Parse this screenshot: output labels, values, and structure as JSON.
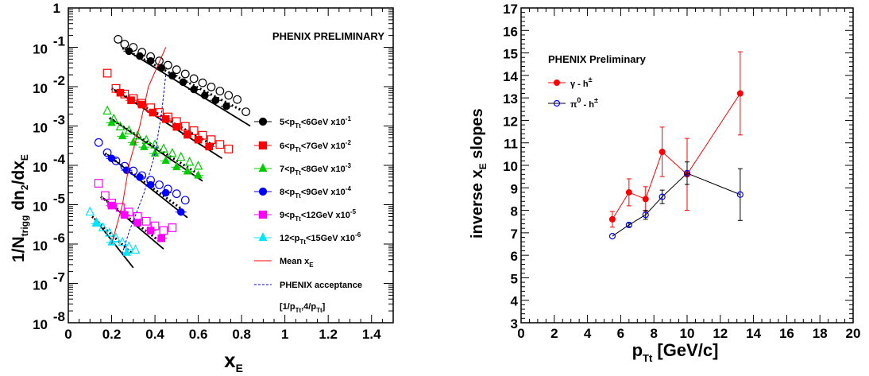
{
  "chart_data": [
    {
      "type": "scatter",
      "title": "",
      "annotation": "PHENIX PRELIMINARY",
      "annotation_color": "#ff0000",
      "xlabel": "x",
      "xlabel_sub": "E",
      "ylabel_parts": {
        "a": "1/N",
        "a_sub": "trigg",
        "b": " dn",
        "b_sub": "2",
        "c": "/dx",
        "c_sub": "E"
      },
      "xlim": [
        0,
        1.5
      ],
      "ylim_log10": [
        -8,
        0
      ],
      "yscale": "log",
      "x_ticks": [
        "0",
        "0.2",
        "0.4",
        "0.6",
        "0.8",
        "1",
        "1.2",
        "1.4"
      ],
      "x_tick_values": [
        0,
        0.2,
        0.4,
        0.6,
        0.8,
        1.0,
        1.2,
        1.4
      ],
      "y_ticks": [
        {
          "base": "1",
          "exp": ""
        },
        {
          "base": "10",
          "exp": "-1"
        },
        {
          "base": "10",
          "exp": "-2"
        },
        {
          "base": "10",
          "exp": "-3"
        },
        {
          "base": "10",
          "exp": "-4"
        },
        {
          "base": "10",
          "exp": "-5"
        },
        {
          "base": "10",
          "exp": "-6"
        },
        {
          "base": "10",
          "exp": "-7"
        },
        {
          "base": "10",
          "exp": "-8"
        }
      ],
      "series": [
        {
          "name": "5<p",
          "name_sub": "Tt",
          "name_tail": "<6GeV x10",
          "name_sup": "-1",
          "color": "#000000",
          "marker": "circle",
          "closed": [
            [
              0.28,
              0.08
            ],
            [
              0.33,
              0.06
            ],
            [
              0.38,
              0.045
            ],
            [
              0.43,
              0.03
            ],
            [
              0.48,
              0.019
            ],
            [
              0.53,
              0.013
            ],
            [
              0.58,
              0.0085
            ],
            [
              0.63,
              0.006
            ],
            [
              0.68,
              0.0045
            ],
            [
              0.73,
              0.0032
            ]
          ],
          "open": [
            [
              0.23,
              0.16
            ],
            [
              0.26,
              0.12
            ],
            [
              0.3,
              0.1
            ],
            [
              0.34,
              0.075
            ],
            [
              0.38,
              0.058
            ],
            [
              0.42,
              0.045
            ],
            [
              0.46,
              0.035
            ],
            [
              0.5,
              0.027
            ],
            [
              0.54,
              0.021
            ],
            [
              0.58,
              0.016
            ],
            [
              0.62,
              0.0125
            ],
            [
              0.66,
              0.0098
            ],
            [
              0.7,
              0.0077
            ],
            [
              0.74,
              0.006
            ],
            [
              0.78,
              0.0047
            ],
            [
              0.82,
              0.0023
            ]
          ],
          "fit": [
            [
              0.26,
              0.09
            ],
            [
              0.84,
              0.001
            ]
          ],
          "acceptance": [
            [
              0.25,
              0.095
            ],
            [
              0.8,
              0.0025
            ]
          ]
        },
        {
          "name": "6<p",
          "name_sub": "Tt",
          "name_tail": "<7GeV x10",
          "name_sup": "-2",
          "color": "#ff0000",
          "marker": "square",
          "closed": [
            [
              0.24,
              0.007
            ],
            [
              0.29,
              0.0045
            ],
            [
              0.34,
              0.0035
            ],
            [
              0.39,
              0.0022
            ],
            [
              0.45,
              0.0015
            ],
            [
              0.5,
              0.00095
            ],
            [
              0.55,
              0.0006
            ],
            [
              0.6,
              0.00045
            ],
            [
              0.65,
              0.0003
            ]
          ],
          "open": [
            [
              0.18,
              0.022
            ],
            [
              0.22,
              0.009
            ],
            [
              0.26,
              0.0065
            ],
            [
              0.3,
              0.005
            ],
            [
              0.34,
              0.0038
            ],
            [
              0.38,
              0.0029
            ],
            [
              0.42,
              0.0022
            ],
            [
              0.46,
              0.0017
            ],
            [
              0.5,
              0.0013
            ],
            [
              0.54,
              0.00098
            ],
            [
              0.58,
              0.00076
            ],
            [
              0.62,
              0.00058
            ],
            [
              0.66,
              0.00045
            ],
            [
              0.7,
              0.00034
            ],
            [
              0.74,
              0.00026
            ]
          ],
          "fit": [
            [
              0.21,
              0.0085
            ],
            [
              0.71,
              0.00015
            ]
          ],
          "acceptance": [
            [
              0.2,
              0.009
            ],
            [
              0.68,
              0.0003
            ]
          ]
        },
        {
          "name": "7<p",
          "name_sub": "Tt",
          "name_tail": "<8GeV x10",
          "name_sup": "-3",
          "color": "#00cc00",
          "marker": "triangle",
          "closed": [
            [
              0.2,
              0.0012
            ],
            [
              0.25,
              0.00055
            ],
            [
              0.3,
              0.00038
            ],
            [
              0.35,
              0.00029
            ],
            [
              0.4,
              0.0002
            ],
            [
              0.45,
              0.00013
            ],
            [
              0.5,
              9e-05
            ],
            [
              0.55,
              7e-05
            ],
            [
              0.6,
              5.5e-05
            ]
          ],
          "open": [
            [
              0.18,
              0.0024
            ],
            [
              0.21,
              0.0015
            ],
            [
              0.24,
              0.00095
            ],
            [
              0.28,
              0.00075
            ],
            [
              0.32,
              0.00056
            ],
            [
              0.36,
              0.00043
            ],
            [
              0.4,
              0.00033
            ],
            [
              0.44,
              0.00026
            ],
            [
              0.48,
              0.0002
            ],
            [
              0.52,
              0.00016
            ],
            [
              0.56,
              0.00012
            ],
            [
              0.6,
              9.5e-05
            ]
          ],
          "fit": [
            [
              0.2,
              0.0015
            ],
            [
              0.62,
              4e-05
            ]
          ],
          "acceptance": [
            [
              0.19,
              0.0016
            ],
            [
              0.6,
              6e-05
            ]
          ]
        },
        {
          "name": "8<p",
          "name_sub": "Tt",
          "name_tail": "<9GeV x10",
          "name_sup": "-4",
          "color": "#0000ff",
          "marker": "circle",
          "closed": [
            [
              0.2,
              0.00015
            ],
            [
              0.27,
              7.5e-05
            ],
            [
              0.33,
              5e-05
            ],
            [
              0.38,
              3.2e-05
            ],
            [
              0.45,
              2e-05
            ],
            [
              0.52,
              6.5e-06
            ]
          ],
          "open": [
            [
              0.14,
              0.00038
            ],
            [
              0.18,
              0.00021
            ],
            [
              0.22,
              0.00013
            ],
            [
              0.26,
              9.5e-05
            ],
            [
              0.3,
              7.2e-05
            ],
            [
              0.34,
              5.5e-05
            ],
            [
              0.38,
              4.2e-05
            ],
            [
              0.42,
              3.2e-05
            ],
            [
              0.46,
              2.5e-05
            ],
            [
              0.5,
              1.9e-05
            ],
            [
              0.54,
              1.3e-05
            ]
          ],
          "fit": [
            [
              0.18,
              0.00019
            ],
            [
              0.55,
              4.7e-06
            ]
          ],
          "acceptance": [
            [
              0.17,
              0.0002
            ],
            [
              0.52,
              8e-06
            ]
          ]
        },
        {
          "name": "9<p",
          "name_sub": "Tt",
          "name_tail": "<12GeV x10",
          "name_sup": "-5",
          "color": "#ff00ff",
          "marker": "square",
          "closed": [
            [
              0.2,
              9.5e-06
            ],
            [
              0.26,
              5.5e-06
            ],
            [
              0.32,
              3.5e-06
            ],
            [
              0.38,
              2.2e-06
            ],
            [
              0.43,
              1.4e-06
            ]
          ],
          "open": [
            [
              0.14,
              3.5e-05
            ],
            [
              0.17,
              1.7e-05
            ],
            [
              0.2,
              1.1e-05
            ],
            [
              0.24,
              8.5e-06
            ],
            [
              0.28,
              6.5e-06
            ],
            [
              0.32,
              5e-06
            ],
            [
              0.36,
              3.8e-06
            ],
            [
              0.4,
              2.9e-06
            ],
            [
              0.44,
              2.2e-06
            ],
            [
              0.48,
              2.6e-06
            ]
          ],
          "fit": [
            [
              0.16,
              1.5e-05
            ],
            [
              0.44,
              7.5e-07
            ]
          ],
          "acceptance": [
            [
              0.15,
              1.6e-05
            ],
            [
              0.42,
              1.2e-06
            ]
          ]
        },
        {
          "name": "12<p",
          "name_sub": "Tt",
          "name_tail": "<15GeV x10",
          "name_sup": "-6",
          "color": "#00e5ff",
          "marker": "triangle",
          "closed": [
            [
              0.13,
              3.3e-06
            ],
            [
              0.2,
              1.1e-06
            ],
            [
              0.27,
              6e-07
            ]
          ],
          "open": [
            [
              0.1,
              6.5e-06
            ],
            [
              0.13,
              3.5e-06
            ],
            [
              0.16,
              2.6e-06
            ],
            [
              0.19,
              1.9e-06
            ],
            [
              0.22,
              1.4e-06
            ],
            [
              0.25,
              1.1e-06
            ],
            [
              0.28,
              8.5e-07
            ],
            [
              0.31,
              7e-07
            ]
          ],
          "fit": [
            [
              0.12,
              4.5e-06
            ],
            [
              0.3,
              2.5e-07
            ]
          ],
          "acceptance": [
            [
              0.11,
              5e-06
            ],
            [
              0.29,
              6e-07
            ]
          ]
        }
      ],
      "mean_line": {
        "name": "Mean x",
        "name_sub": "E",
        "color": "#ff0000",
        "points": [
          [
            0.45,
            0.1
          ],
          [
            0.37,
            0.01
          ],
          [
            0.33,
            0.001
          ],
          [
            0.28,
            0.0001
          ],
          [
            0.25,
            1e-05
          ],
          [
            0.2,
            1e-06
          ]
        ]
      },
      "acceptance_line": {
        "name": "PHENIX acceptance",
        "color": "#0000ff",
        "points": [
          [
            0.45,
            0.02
          ],
          [
            0.43,
            0.002
          ],
          [
            0.4,
            0.0002
          ],
          [
            0.35,
            2e-05
          ],
          [
            0.28,
            2e-06
          ],
          [
            0.25,
            6e-07
          ]
        ]
      },
      "legend_extra": {
        "text": "[1/p",
        "sub1": "Tt",
        "mid": ",4/p",
        "sub2": "Tt",
        "tail": "]"
      }
    },
    {
      "type": "scatter",
      "title": "",
      "annotation": "PHENIX Preliminary",
      "xlabel": "p",
      "xlabel_sub": "Tt",
      "xlabel_tail": " [GeV/c]",
      "ylabel": "inverse x",
      "ylabel_sub": "E",
      "ylabel_tail": " slopes",
      "xlim": [
        0,
        20
      ],
      "ylim": [
        3,
        17
      ],
      "x_ticks": [
        "0",
        "2",
        "4",
        "6",
        "8",
        "10",
        "12",
        "14",
        "16",
        "18",
        "20"
      ],
      "y_ticks": [
        "3",
        "4",
        "5",
        "6",
        "7",
        "8",
        "9",
        "10",
        "11",
        "12",
        "13",
        "14",
        "15",
        "16",
        "17"
      ],
      "series": [
        {
          "name": "γ - h",
          "name_sup": "±",
          "color": "#ff0000",
          "marker": "filled-circle",
          "x": [
            5.5,
            6.5,
            7.5,
            8.5,
            10.0,
            13.2
          ],
          "y": [
            7.6,
            8.8,
            8.5,
            10.6,
            9.6,
            13.2
          ],
          "err": [
            0.35,
            0.6,
            0.55,
            1.1,
            1.6,
            1.85
          ]
        },
        {
          "name": "π",
          "name_sup": "0",
          "name_tail": " - h",
          "name_sup2": "±",
          "color": "#0000ff",
          "line_color": "#000000",
          "marker": "open-circle",
          "x": [
            5.5,
            6.5,
            7.5,
            8.5,
            10.0,
            13.2
          ],
          "y": [
            6.85,
            7.35,
            7.8,
            8.6,
            9.65,
            8.7
          ],
          "err": [
            0.0,
            0.08,
            0.2,
            0.3,
            0.5,
            1.15
          ]
        }
      ]
    }
  ]
}
